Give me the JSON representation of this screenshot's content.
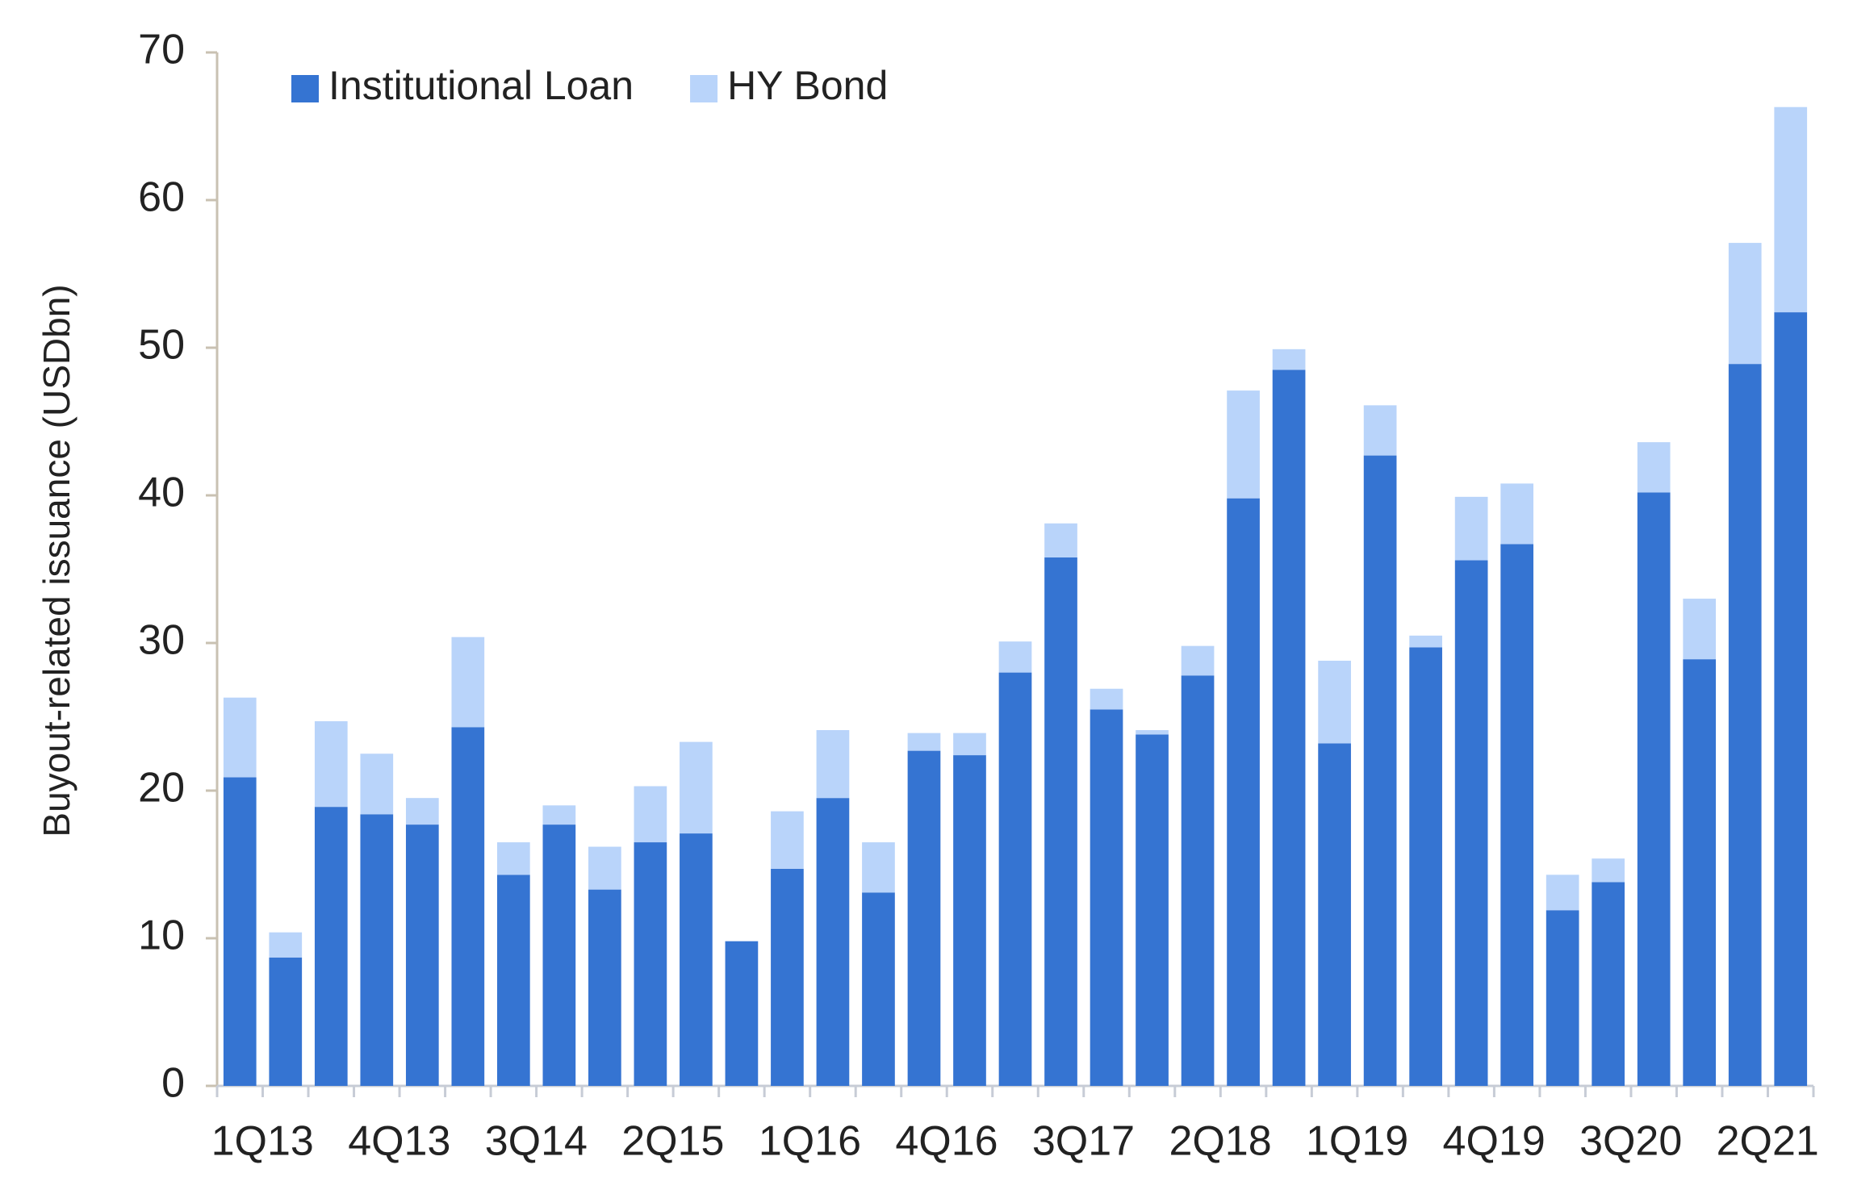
{
  "chart_data": {
    "type": "stacked_bar",
    "y_label": "Buyout-related issuance (USDbn)",
    "categories": [
      "1Q13",
      null,
      null,
      "4Q13",
      null,
      null,
      "3Q14",
      null,
      null,
      "2Q15",
      null,
      null,
      "1Q16",
      null,
      null,
      "4Q16",
      null,
      null,
      "3Q17",
      null,
      null,
      "2Q18",
      null,
      null,
      "1Q19",
      null,
      null,
      "4Q19",
      null,
      null,
      "3Q20",
      null,
      null,
      "2Q21",
      null
    ],
    "series": [
      {
        "name": "Institutional Loan",
        "color": "#3574d2",
        "values": [
          20.9,
          8.7,
          18.9,
          18.4,
          17.7,
          24.3,
          14.3,
          17.7,
          13.3,
          16.5,
          17.1,
          9.8,
          14.7,
          19.5,
          13.1,
          22.7,
          22.4,
          28.0,
          35.8,
          25.5,
          23.8,
          27.8,
          39.8,
          48.5,
          23.2,
          42.7,
          29.7,
          35.6,
          36.7,
          11.9,
          13.8,
          40.2,
          28.9,
          48.9,
          52.4
        ]
      },
      {
        "name": "HY Bond",
        "color": "#b9d4fa",
        "values": [
          5.4,
          1.7,
          5.8,
          4.1,
          1.8,
          6.1,
          2.2,
          1.3,
          2.9,
          3.8,
          6.2,
          0,
          3.9,
          4.6,
          3.4,
          1.2,
          1.5,
          2.1,
          2.3,
          1.4,
          0.3,
          2.0,
          7.3,
          1.4,
          5.6,
          3.4,
          0.8,
          4.3,
          4.1,
          2.4,
          1.6,
          3.4,
          4.1,
          8.2,
          13.9
        ]
      }
    ],
    "ylim": [
      0,
      70
    ],
    "yticks": [
      0,
      10,
      20,
      30,
      40,
      50,
      60,
      70
    ],
    "grid": false,
    "legend": "upper left"
  }
}
